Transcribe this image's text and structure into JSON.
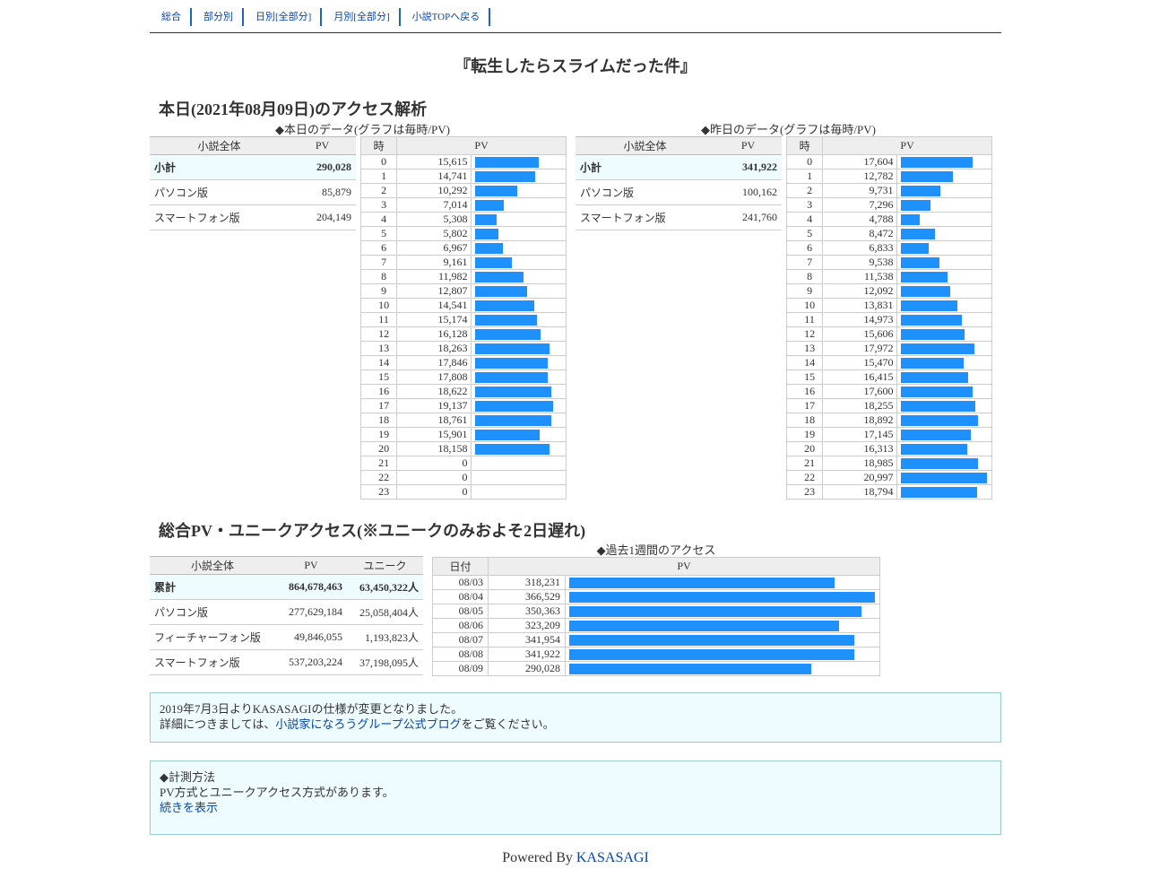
{
  "nav": [
    {
      "label": "総合"
    },
    {
      "label": "部分別"
    },
    {
      "label": "日別[全部分]"
    },
    {
      "label": "月別[全部分]"
    },
    {
      "label": "小説TOPへ戻る"
    }
  ],
  "novel_title": "『転生したらスライムだった件』",
  "today_title": "本日(2021年08月09日)のアクセス解析",
  "today": {
    "caption": "◆本日のデータ(グラフは毎時/PV)",
    "summary_headers": [
      "小説全体",
      "PV"
    ],
    "summary": [
      {
        "label": "小計",
        "value": "290,028"
      },
      {
        "label": "パソコン版",
        "value": "85,879"
      },
      {
        "label": "スマートフォン版",
        "value": "204,149"
      }
    ],
    "hourly_headers": [
      "時",
      "PV"
    ],
    "hourly_max": 20997,
    "hourly": [
      {
        "hour": "0",
        "pv": "15,615",
        "value": 15615
      },
      {
        "hour": "1",
        "pv": "14,741",
        "value": 14741
      },
      {
        "hour": "2",
        "pv": "10,292",
        "value": 10292
      },
      {
        "hour": "3",
        "pv": "7,014",
        "value": 7014
      },
      {
        "hour": "4",
        "pv": "5,308",
        "value": 5308
      },
      {
        "hour": "5",
        "pv": "5,802",
        "value": 5802
      },
      {
        "hour": "6",
        "pv": "6,967",
        "value": 6967
      },
      {
        "hour": "7",
        "pv": "9,161",
        "value": 9161
      },
      {
        "hour": "8",
        "pv": "11,982",
        "value": 11982
      },
      {
        "hour": "9",
        "pv": "12,807",
        "value": 12807
      },
      {
        "hour": "10",
        "pv": "14,541",
        "value": 14541
      },
      {
        "hour": "11",
        "pv": "15,174",
        "value": 15174
      },
      {
        "hour": "12",
        "pv": "16,128",
        "value": 16128
      },
      {
        "hour": "13",
        "pv": "18,263",
        "value": 18263
      },
      {
        "hour": "14",
        "pv": "17,846",
        "value": 17846
      },
      {
        "hour": "15",
        "pv": "17,808",
        "value": 17808
      },
      {
        "hour": "16",
        "pv": "18,622",
        "value": 18622
      },
      {
        "hour": "17",
        "pv": "19,137",
        "value": 19137
      },
      {
        "hour": "18",
        "pv": "18,761",
        "value": 18761
      },
      {
        "hour": "19",
        "pv": "15,901",
        "value": 15901
      },
      {
        "hour": "20",
        "pv": "18,158",
        "value": 18158
      },
      {
        "hour": "21",
        "pv": "0",
        "value": 0
      },
      {
        "hour": "22",
        "pv": "0",
        "value": 0
      },
      {
        "hour": "23",
        "pv": "0",
        "value": 0
      }
    ]
  },
  "yesterday": {
    "caption": "◆昨日のデータ(グラフは毎時/PV)",
    "summary_headers": [
      "小説全体",
      "PV"
    ],
    "summary": [
      {
        "label": "小計",
        "value": "341,922"
      },
      {
        "label": "パソコン版",
        "value": "100,162"
      },
      {
        "label": "スマートフォン版",
        "value": "241,760"
      }
    ],
    "hourly_headers": [
      "時",
      "PV"
    ],
    "hourly_max": 20997,
    "hourly": [
      {
        "hour": "0",
        "pv": "17,604",
        "value": 17604
      },
      {
        "hour": "1",
        "pv": "12,782",
        "value": 12782
      },
      {
        "hour": "2",
        "pv": "9,731",
        "value": 9731
      },
      {
        "hour": "3",
        "pv": "7,296",
        "value": 7296
      },
      {
        "hour": "4",
        "pv": "4,788",
        "value": 4788
      },
      {
        "hour": "5",
        "pv": "8,472",
        "value": 8472
      },
      {
        "hour": "6",
        "pv": "6,833",
        "value": 6833
      },
      {
        "hour": "7",
        "pv": "9,538",
        "value": 9538
      },
      {
        "hour": "8",
        "pv": "11,538",
        "value": 11538
      },
      {
        "hour": "9",
        "pv": "12,092",
        "value": 12092
      },
      {
        "hour": "10",
        "pv": "13,831",
        "value": 13831
      },
      {
        "hour": "11",
        "pv": "14,973",
        "value": 14973
      },
      {
        "hour": "12",
        "pv": "15,606",
        "value": 15606
      },
      {
        "hour": "13",
        "pv": "17,972",
        "value": 17972
      },
      {
        "hour": "14",
        "pv": "15,470",
        "value": 15470
      },
      {
        "hour": "15",
        "pv": "16,415",
        "value": 16415
      },
      {
        "hour": "16",
        "pv": "17,600",
        "value": 17600
      },
      {
        "hour": "17",
        "pv": "18,255",
        "value": 18255
      },
      {
        "hour": "18",
        "pv": "18,892",
        "value": 18892
      },
      {
        "hour": "19",
        "pv": "17,145",
        "value": 17145
      },
      {
        "hour": "20",
        "pv": "16,313",
        "value": 16313
      },
      {
        "hour": "21",
        "pv": "18,985",
        "value": 18985
      },
      {
        "hour": "22",
        "pv": "20,997",
        "value": 20997
      },
      {
        "hour": "23",
        "pv": "18,794",
        "value": 18794
      }
    ]
  },
  "total_title": "総合PV・ユニークアクセス(※ユニークのみおよそ2日遅れ)",
  "totals": {
    "headers": [
      "小説全体",
      "PV",
      "ユニーク"
    ],
    "rows": [
      {
        "label": "累計",
        "pv": "864,678,463",
        "unique": "63,450,322人"
      },
      {
        "label": "パソコン版",
        "pv": "277,629,184",
        "unique": "25,058,404人"
      },
      {
        "label": "フィーチャーフォン版",
        "pv": "49,846,055",
        "unique": "1,193,823人"
      },
      {
        "label": "スマートフォン版",
        "pv": "537,203,224",
        "unique": "37,198,095人"
      }
    ]
  },
  "weekly": {
    "caption": "◆過去1週間のアクセス",
    "headers": [
      "日付",
      "PV"
    ],
    "max": 366529,
    "rows": [
      {
        "date": "08/03",
        "pv": "318,231",
        "value": 318231
      },
      {
        "date": "08/04",
        "pv": "366,529",
        "value": 366529
      },
      {
        "date": "08/05",
        "pv": "350,363",
        "value": 350363
      },
      {
        "date": "08/06",
        "pv": "323,209",
        "value": 323209
      },
      {
        "date": "08/07",
        "pv": "341,954",
        "value": 341954
      },
      {
        "date": "08/08",
        "pv": "341,922",
        "value": 341922
      },
      {
        "date": "08/09",
        "pv": "290,028",
        "value": 290028
      }
    ]
  },
  "notice1": {
    "line1": "2019年7月3日よりKASASAGIの仕様が変更となりました。",
    "line2_prefix": "詳細につきましては、",
    "link": "小説家になろうグループ公式ブログ",
    "line2_suffix": "をご覧ください。"
  },
  "notice2": {
    "line1": "◆計測方法",
    "line2": "PV方式とユニークアクセス方式があります。",
    "link": "続きを表示"
  },
  "footer": {
    "prefix": "Powered By ",
    "link": "KASASAGI"
  },
  "colors": {
    "bar": "#1e90ff",
    "notice_bg": "#eefcff",
    "subtotal_bg": "#eefcff",
    "link": "#0645ad"
  }
}
